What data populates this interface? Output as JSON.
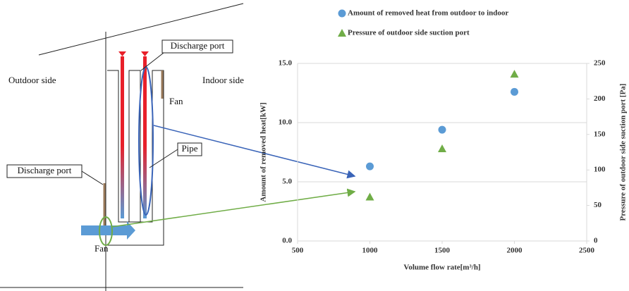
{
  "diagram": {
    "labels": [
      "Outdoor side",
      "Indoor side",
      "Discharge port",
      "Discharge port",
      "Fan",
      "Fan",
      "Pipe"
    ]
  },
  "chart_data": {
    "type": "scatter",
    "x": [
      1000,
      1500,
      2000
    ],
    "series": [
      {
        "name": "Amount of removed heat from outdoor to indoor",
        "color": "#5b9bd5",
        "marker": "circle",
        "values": [
          6.3,
          9.4,
          12.6
        ]
      },
      {
        "name": "Pressure of outdoor side suction port",
        "color": "#70ad47",
        "marker": "triangle",
        "axis": "y2",
        "values": [
          62,
          130,
          235
        ]
      }
    ],
    "xlim": [
      500,
      2500
    ],
    "xticks": [
      500,
      1000,
      1500,
      2000,
      2500
    ],
    "ylim": [
      0,
      15
    ],
    "yticks": [
      {
        "value": 0,
        "label": "0.0"
      },
      {
        "value": 5,
        "label": "5.0"
      },
      {
        "value": 10,
        "label": "10.0"
      },
      {
        "value": 15,
        "label": "15.0"
      }
    ],
    "y2lim": [
      0,
      250
    ],
    "y2ticks": [
      0,
      50,
      100,
      150,
      200,
      250
    ],
    "xlabel": "Volume flow rate[m³/h]",
    "ylabel": "Amount of removed heat[kW]",
    "y2label": "Pressure of outdoor side suction port [Pa]",
    "grid": true
  }
}
